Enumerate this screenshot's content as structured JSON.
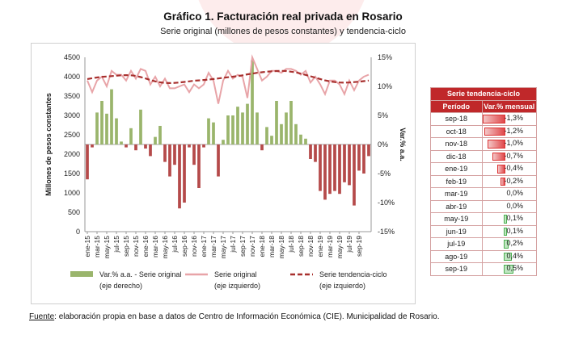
{
  "title": "Gráfico 1. Facturación real privada en Rosario",
  "subtitle": "Serie original (millones de pesos constantes) y tendencia-ciclo",
  "source": {
    "label": "Fuente",
    "text": ": elaboración propia en base a datos de Centro de Información Económica (CIE). Municipalidad de Rosario."
  },
  "colors": {
    "bars": "#9ab56c",
    "original": "#e8a4a8",
    "trend": "#a8302e",
    "neg_bars": "#b54a4a",
    "table_header": "#c0282a"
  },
  "chart_data": {
    "type": "bar",
    "left_axis": {
      "label": "Millones de pesos constantes",
      "ticks": [
        "0",
        "500",
        "1000",
        "1500",
        "2000",
        "2500",
        "3000",
        "3500",
        "4000",
        "4500"
      ],
      "ylim": [
        0,
        4500
      ]
    },
    "right_axis": {
      "label": "Var.% a.a.",
      "ticks": [
        "-15%",
        "-10%",
        "-5%",
        "0%",
        "5%",
        "10%",
        "15%"
      ],
      "ylim": [
        -15,
        15
      ]
    },
    "x_tick_labels": [
      "ene-15",
      "mar-15",
      "may-15",
      "jul-15",
      "sep-15",
      "nov-15",
      "ene-16",
      "mar-16",
      "may-16",
      "jul-16",
      "sep-16",
      "nov-16",
      "ene-17",
      "mar-17",
      "may-17",
      "jul-17",
      "sep-17",
      "nov-17",
      "ene-18",
      "mar-18",
      "may-18",
      "jul-18",
      "sep-18",
      "nov-18",
      "ene-19",
      "mar-19",
      "may-19",
      "jul-19",
      "sep-19"
    ],
    "legend": [
      {
        "key": "bars",
        "text": "Var.% a.a. - Serie original",
        "sub": "(eje derecho)"
      },
      {
        "key": "original",
        "text": "Serie original",
        "sub": "(eje izquierdo)"
      },
      {
        "key": "trend",
        "text": "Serie tendencia-ciclo",
        "sub": "(eje izquierdo)"
      }
    ],
    "series": [
      {
        "name": "Var.% a.a. - Serie original",
        "axis": "right",
        "kind": "bar",
        "values": [
          -6,
          -0.5,
          5.5,
          7.5,
          5.3,
          9.5,
          4.5,
          0.5,
          -0.5,
          2.8,
          -1,
          6,
          -0.7,
          -2,
          1.3,
          3.2,
          -3,
          -5.5,
          -3.5,
          -11,
          -10,
          -0.5,
          -3.5,
          -7.5,
          -0.5,
          4.5,
          3.8,
          -5.5,
          0.8,
          5,
          5,
          6.5,
          5.5,
          7,
          14.5,
          5.5,
          -1,
          3,
          1.5,
          7.5,
          3.5,
          5.5,
          7.5,
          3.5,
          1.7,
          1,
          -2.5,
          -3,
          -8,
          -9.5,
          -8.5,
          -8,
          -8.5,
          -6.5,
          -7,
          -10.5,
          -4.5,
          -5,
          -2
        ]
      },
      {
        "name": "Serie original",
        "axis": "left",
        "kind": "line",
        "values": [
          3900,
          3600,
          3900,
          4000,
          3750,
          4150,
          4050,
          4050,
          3900,
          4150,
          3950,
          4200,
          4150,
          3800,
          4000,
          3750,
          3950,
          3700,
          3700,
          3750,
          3800,
          3600,
          3800,
          3700,
          3800,
          4100,
          3900,
          3300,
          3900,
          4150,
          3950,
          4050,
          4000,
          3450,
          4500,
          4200,
          3900,
          4000,
          4150,
          4150,
          4100,
          4200,
          4200,
          4150,
          4050,
          4150,
          3850,
          4000,
          3800,
          3550,
          3900,
          3900,
          3800,
          3550,
          3900,
          3650,
          3900,
          4000,
          4050
        ]
      },
      {
        "name": "Serie tendencia-ciclo",
        "axis": "left",
        "kind": "line",
        "values": [
          3940,
          3960,
          3980,
          3995,
          4005,
          4015,
          4025,
          4035,
          4040,
          4035,
          4020,
          3990,
          3955,
          3915,
          3880,
          3855,
          3840,
          3835,
          3840,
          3850,
          3865,
          3880,
          3895,
          3905,
          3915,
          3925,
          3940,
          3955,
          3970,
          3985,
          4000,
          4015,
          4035,
          4060,
          4080,
          4100,
          4115,
          4130,
          4140,
          4145,
          4150,
          4145,
          4130,
          4110,
          4080,
          4045,
          4010,
          3975,
          3940,
          3905,
          3880,
          3860,
          3850,
          3845,
          3850,
          3860,
          3870,
          3885,
          3900
        ]
      }
    ]
  },
  "tendencia_table": {
    "title": "Serie tendencia-ciclo",
    "headers": [
      "Período",
      "Var.% mensual"
    ],
    "rows": [
      {
        "period": "sep-18",
        "label": "-1,3%",
        "value": -1.3
      },
      {
        "period": "oct-18",
        "label": "-1,2%",
        "value": -1.2
      },
      {
        "period": "nov-18",
        "label": "-1,0%",
        "value": -1.0
      },
      {
        "period": "dic-18",
        "label": "-0,7%",
        "value": -0.7
      },
      {
        "period": "ene-19",
        "label": "-0,4%",
        "value": -0.4
      },
      {
        "period": "feb-19",
        "label": "-0,2%",
        "value": -0.2
      },
      {
        "period": "mar-19",
        "label": "0,0%",
        "value": 0.0
      },
      {
        "period": "abr-19",
        "label": "0,0%",
        "value": 0.0
      },
      {
        "period": "may-19",
        "label": "0,1%",
        "value": 0.1
      },
      {
        "period": "jun-19",
        "label": "0,1%",
        "value": 0.1
      },
      {
        "period": "jul-19",
        "label": "0,2%",
        "value": 0.2
      },
      {
        "period": "ago-19",
        "label": "0,4%",
        "value": 0.4
      },
      {
        "period": "sep-19",
        "label": "0,5%",
        "value": 0.5
      }
    ]
  }
}
